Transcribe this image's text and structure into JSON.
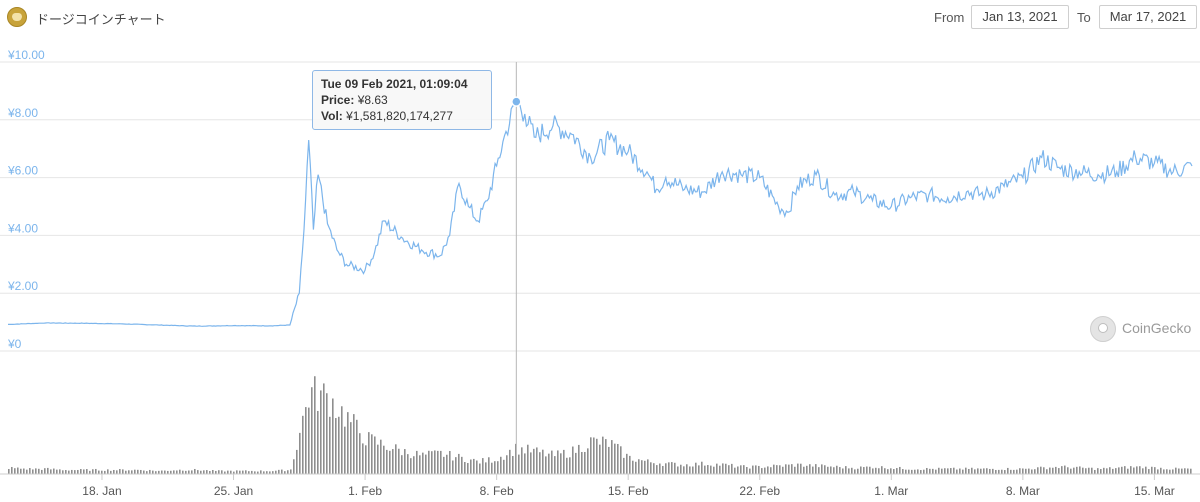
{
  "header": {
    "title": "ドージコインチャート",
    "from_label": "From",
    "from_value": "Jan 13, 2021",
    "to_label": "To",
    "to_value": "Mar 17, 2021"
  },
  "tooltip": {
    "datetime": "Tue 09 Feb 2021, 01:09:04",
    "price_label": "Price:",
    "price_value": "¥8.63",
    "vol_label": "Vol:",
    "vol_value": "¥1,581,820,174,277"
  },
  "watermark": "CoinGecko",
  "colors": {
    "price_line": "#7cb5ec",
    "volume_bar": "#8e8e8e",
    "grid": "#e6e6e6",
    "axis_label": "#7cb5ec"
  },
  "chart_data": {
    "type": "line",
    "title": "ドージコインチャート",
    "xlabel": "",
    "ylabel": "",
    "ylim": [
      0,
      10
    ],
    "xlim": [
      "2021-01-13",
      "2021-03-17"
    ],
    "y_ticks": [
      "¥0",
      "¥2.00",
      "¥4.00",
      "¥6.00",
      "¥8.00",
      "¥10.00"
    ],
    "x_ticks": [
      {
        "date": "2021-01-18",
        "label": "18. Jan"
      },
      {
        "date": "2021-01-25",
        "label": "25. Jan"
      },
      {
        "date": "2021-02-01",
        "label": "1. Feb"
      },
      {
        "date": "2021-02-08",
        "label": "8. Feb"
      },
      {
        "date": "2021-02-15",
        "label": "15. Feb"
      },
      {
        "date": "2021-02-22",
        "label": "22. Feb"
      },
      {
        "date": "2021-03-01",
        "label": "1. Mar"
      },
      {
        "date": "2021-03-08",
        "label": "8. Mar"
      },
      {
        "date": "2021-03-15",
        "label": "15. Mar"
      }
    ],
    "grid": true,
    "legend": "none",
    "crosshair_date": "2021-02-09T01:09:04",
    "series": [
      {
        "name": "Price",
        "points": [
          [
            "2021-01-13",
            0.92
          ],
          [
            "2021-01-15",
            0.97
          ],
          [
            "2021-01-17",
            0.96
          ],
          [
            "2021-01-19",
            0.94
          ],
          [
            "2021-01-21",
            0.9
          ],
          [
            "2021-01-23",
            0.86
          ],
          [
            "2021-01-25",
            0.88
          ],
          [
            "2021-01-27",
            0.87
          ],
          [
            "2021-01-28",
            0.9
          ],
          [
            "2021-01-28T12:00",
            2.0
          ],
          [
            "2021-01-28T18:00",
            4.2
          ],
          [
            "2021-01-29",
            7.3
          ],
          [
            "2021-01-29T06:00",
            4.2
          ],
          [
            "2021-01-29T12:00",
            6.1
          ],
          [
            "2021-01-30",
            4.4
          ],
          [
            "2021-01-30T12:00",
            3.5
          ],
          [
            "2021-01-31",
            3.0
          ],
          [
            "2021-02-01",
            2.8
          ],
          [
            "2021-02-01T12:00",
            3.4
          ],
          [
            "2021-02-02",
            4.5
          ],
          [
            "2021-02-03",
            3.9
          ],
          [
            "2021-02-04",
            3.5
          ],
          [
            "2021-02-05",
            3.3
          ],
          [
            "2021-02-05T12:00",
            4.0
          ],
          [
            "2021-02-06",
            5.8
          ],
          [
            "2021-02-06T12:00",
            5.0
          ],
          [
            "2021-02-07",
            4.5
          ],
          [
            "2021-02-07T12:00",
            5.2
          ],
          [
            "2021-02-08",
            6.4
          ],
          [
            "2021-02-08T12:00",
            7.6
          ],
          [
            "2021-02-09T01:09",
            8.63
          ],
          [
            "2021-02-09T12:00",
            8.2
          ],
          [
            "2021-02-10",
            7.4
          ],
          [
            "2021-02-11",
            7.8
          ],
          [
            "2021-02-12",
            7.5
          ],
          [
            "2021-02-13",
            6.7
          ],
          [
            "2021-02-14",
            7.3
          ],
          [
            "2021-02-15",
            6.9
          ],
          [
            "2021-02-16",
            6.2
          ],
          [
            "2021-02-16T12:00",
            5.6
          ],
          [
            "2021-02-17",
            6.0
          ],
          [
            "2021-02-18",
            5.6
          ],
          [
            "2021-02-19",
            5.5
          ],
          [
            "2021-02-20",
            6.2
          ],
          [
            "2021-02-21",
            6.1
          ],
          [
            "2021-02-22",
            6.0
          ],
          [
            "2021-02-23",
            5.0
          ],
          [
            "2021-02-23T12:00",
            4.8
          ],
          [
            "2021-02-24",
            5.7
          ],
          [
            "2021-02-25",
            6.1
          ],
          [
            "2021-02-26",
            5.4
          ],
          [
            "2021-02-27",
            5.5
          ],
          [
            "2021-02-28",
            5.2
          ],
          [
            "2021-03-01",
            5.0
          ],
          [
            "2021-03-02",
            5.3
          ],
          [
            "2021-03-03",
            5.4
          ],
          [
            "2021-03-04",
            5.3
          ],
          [
            "2021-03-05",
            5.5
          ],
          [
            "2021-03-06",
            5.4
          ],
          [
            "2021-03-07",
            5.7
          ],
          [
            "2021-03-08",
            6.0
          ],
          [
            "2021-03-09",
            6.7
          ],
          [
            "2021-03-10",
            6.3
          ],
          [
            "2021-03-11",
            6.2
          ],
          [
            "2021-03-12",
            6.1
          ],
          [
            "2021-03-13",
            6.2
          ],
          [
            "2021-03-14",
            6.7
          ],
          [
            "2021-03-15",
            6.5
          ],
          [
            "2021-03-16",
            6.2
          ],
          [
            "2021-03-17",
            6.4
          ]
        ]
      },
      {
        "name": "Volume",
        "relative_values": [
          0.06,
          0.05,
          0.05,
          0.04,
          0.04,
          0.04,
          0.04,
          0.04,
          0.03,
          0.04,
          0.04,
          0.03,
          0.03,
          0.03,
          0.03,
          0.04,
          0.8,
          0.75,
          0.55,
          0.35,
          0.28,
          0.22,
          0.18,
          0.2,
          0.16,
          0.12,
          0.15,
          0.25,
          0.22,
          0.18,
          0.22,
          0.32,
          0.3,
          0.16,
          0.12,
          0.1,
          0.09,
          0.1,
          0.09,
          0.07,
          0.07,
          0.08,
          0.09,
          0.08,
          0.07,
          0.06,
          0.07,
          0.06,
          0.05,
          0.05,
          0.05,
          0.05,
          0.05,
          0.05,
          0.05,
          0.06,
          0.07,
          0.06,
          0.05,
          0.06,
          0.07,
          0.06,
          0.05,
          0.05
        ]
      }
    ]
  }
}
